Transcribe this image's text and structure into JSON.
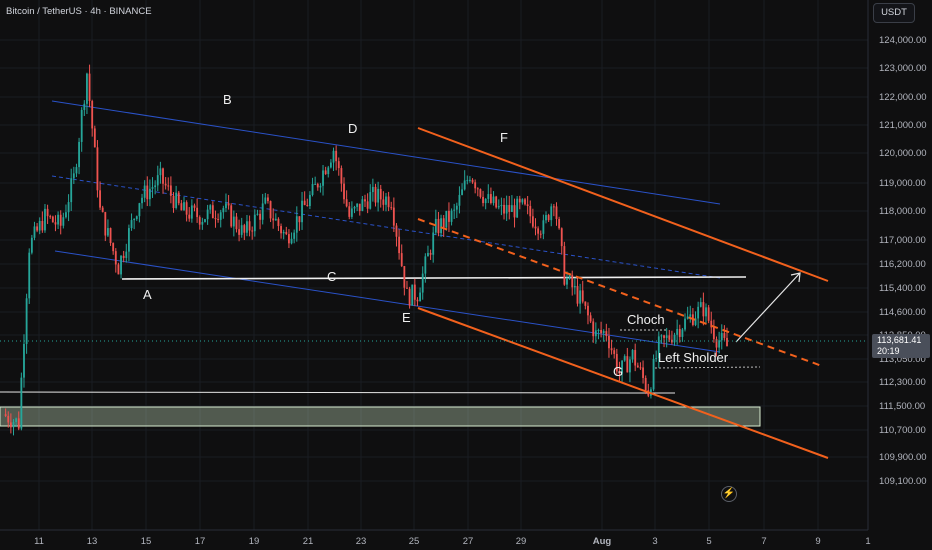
{
  "header": {
    "title": "Bitcoin / TetherUS · 4h · BINANCE",
    "currency": "USDT"
  },
  "last_price": {
    "value": "113,681.41",
    "countdown": "20:19"
  },
  "icons": {
    "flash": "lightning-icon"
  },
  "chart_data": {
    "type": "candlestick",
    "symbol": "BTCUSDT",
    "interval": "4h",
    "y_ticks": [
      124000,
      123000,
      122000,
      121000,
      120000,
      119000,
      118000,
      117000,
      116200,
      115400,
      114600,
      113850,
      113050,
      112300,
      111500,
      110700,
      109900,
      109100
    ],
    "x_ticks": [
      "11",
      "13",
      "15",
      "17",
      "19",
      "21",
      "23",
      "25",
      "27",
      "29",
      "Aug",
      "3",
      "5",
      "7",
      "9",
      "1"
    ],
    "ylim": [
      108500,
      124500
    ],
    "annotations": [
      "A",
      "B",
      "C",
      "D",
      "E",
      "F",
      "G",
      "Choch",
      "Left Sholder"
    ],
    "colors": {
      "up": "#26a69a",
      "down": "#ef5350",
      "channel_orange": "#f2611d",
      "channel_blue": "#2a52c8",
      "zone_fill": "#cfe8c6",
      "background": "#0f0f10"
    }
  }
}
